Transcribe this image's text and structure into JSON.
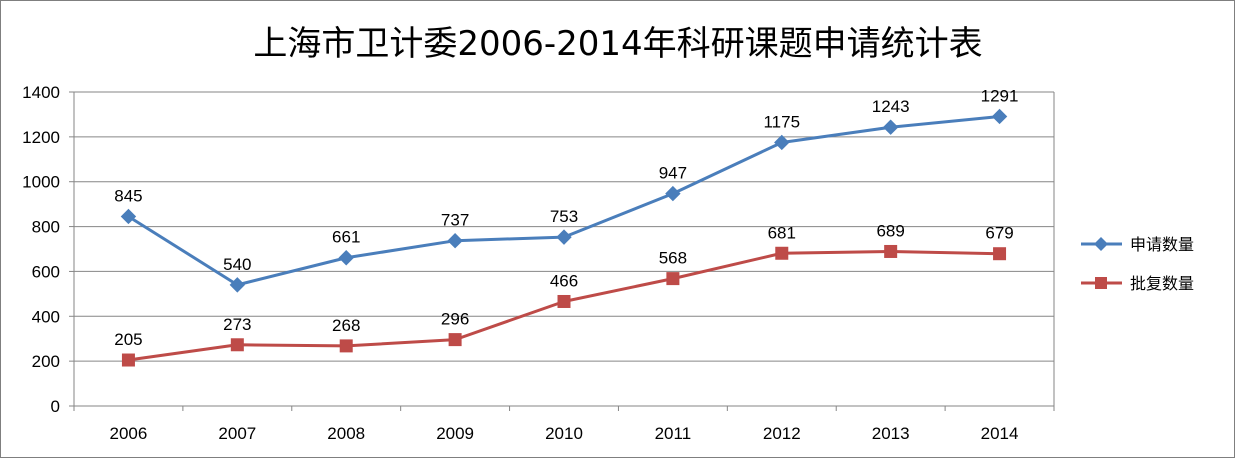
{
  "chart_data": {
    "type": "line",
    "title": "上海市卫计委2006-2014年科研课题申请统计表",
    "xlabel": "",
    "ylabel": "",
    "categories": [
      "2006",
      "2007",
      "2008",
      "2009",
      "2010",
      "2011",
      "2012",
      "2013",
      "2014"
    ],
    "ylim": [
      0,
      1400
    ],
    "yticks": [
      "0",
      "200",
      "400",
      "600",
      "800",
      "1000",
      "1200",
      "1400"
    ],
    "grid": true,
    "legend_position": "right",
    "series": [
      {
        "name": "申请数量",
        "color": "#4A7EBB",
        "marker": "diamond",
        "values": [
          845,
          540,
          661,
          737,
          753,
          947,
          1175,
          1243,
          1291
        ]
      },
      {
        "name": "批复数量",
        "color": "#BE4B48",
        "marker": "square",
        "values": [
          205,
          273,
          268,
          296,
          466,
          568,
          681,
          689,
          679
        ]
      }
    ]
  }
}
